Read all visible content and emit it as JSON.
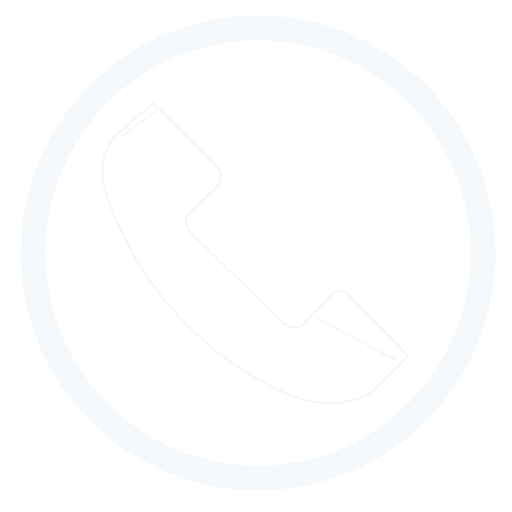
{
  "icon": {
    "name": "phone-call-icon",
    "ring_color": "#f6f9fc",
    "handset_fill": "#ffffff",
    "handset_outline": "#f3f6f9",
    "background": "#ffffff"
  }
}
